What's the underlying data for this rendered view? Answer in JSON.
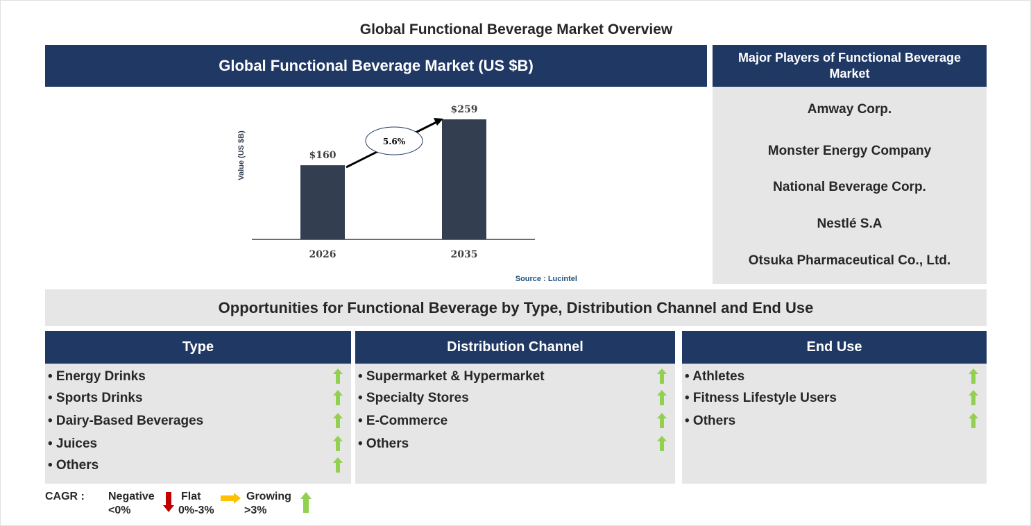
{
  "title": "Global Functional Beverage Market Overview",
  "chart_header": "Global Functional Beverage Market (US $B)",
  "chart_data": {
    "type": "bar",
    "categories": [
      "2026",
      "2035"
    ],
    "values": [
      160,
      259
    ],
    "value_labels": [
      "$160",
      "$259"
    ],
    "ylabel": "Value (US $B)",
    "ylim": [
      0,
      280
    ],
    "cagr_label": "5.6%",
    "bar_color": "#333f50",
    "source": "Source : Lucintel"
  },
  "players": {
    "header": "Major Players of Functional Beverage Market",
    "items": [
      "Amway Corp.",
      "Monster Energy Company",
      "National Beverage Corp.",
      "Nestlé S.A",
      "Otsuka Pharmaceutical Co., Ltd."
    ]
  },
  "opportunities": {
    "header": "Opportunities for Functional Beverage by Type, Distribution Channel and End Use",
    "columns": [
      {
        "header": "Type",
        "items": [
          "• Energy Drinks",
          "• Sports Drinks",
          "• Dairy-Based Beverages",
          "• Juices",
          "• Others"
        ]
      },
      {
        "header": "Distribution Channel",
        "items": [
          "• Supermarket & Hypermarket",
          "• Specialty Stores",
          "• E-Commerce",
          "• Others"
        ]
      },
      {
        "header": "End Use",
        "items": [
          "• Athletes",
          "• Fitness Lifestyle Users",
          "• Others"
        ]
      }
    ]
  },
  "legend": {
    "label": "CAGR :",
    "negative": "Negative",
    "negative_range": "<0%",
    "flat": "Flat",
    "flat_range": "0%-3%",
    "growing": "Growing",
    "growing_range": ">3%"
  },
  "colors": {
    "navy": "#203864",
    "growing": "#92d050",
    "flat": "#ffc000",
    "negative": "#c00000"
  }
}
